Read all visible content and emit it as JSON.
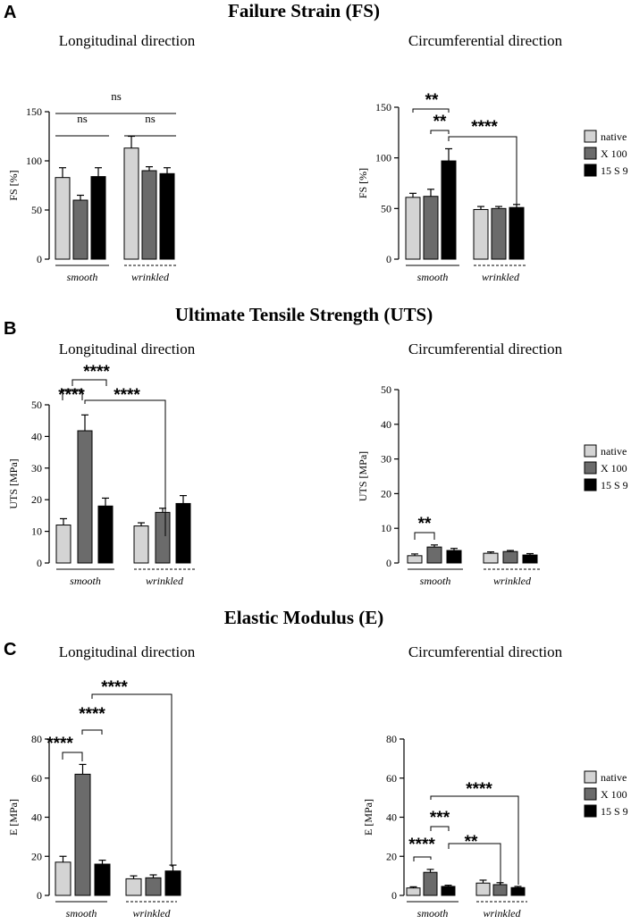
{
  "sections": [
    {
      "letter": "A",
      "title": "Failure Strain (FS)"
    },
    {
      "letter": "B",
      "title": "Ultimate Tensile Strength (UTS)"
    },
    {
      "letter": "C",
      "title": "Elastic Modulus (E)"
    }
  ],
  "legend_entries": [
    "native",
    "X 100",
    "15 S 9"
  ],
  "colors": {
    "native": "#d4d4d4",
    "X 100": "#6b6b6b",
    "15 S 9": "#000000"
  },
  "chart_data": [
    {
      "type": "bar",
      "title": "Longitudinal direction",
      "ylabel": "FS [%]",
      "ylim": [
        0,
        150
      ],
      "yticks": [
        0,
        50,
        100,
        150
      ],
      "groups": [
        "smooth",
        "wrinkled"
      ],
      "series": [
        {
          "name": "native",
          "values": [
            83,
            113
          ],
          "errors": [
            10,
            12
          ]
        },
        {
          "name": "X 100",
          "values": [
            60,
            90
          ],
          "errors": [
            5,
            4
          ]
        },
        {
          "name": "15 S 9",
          "values": [
            84,
            87
          ],
          "errors": [
            9,
            6
          ]
        }
      ],
      "annotations": [
        {
          "label": "ns",
          "from": "smooth",
          "to": "wrinkled",
          "level": 155
        },
        {
          "label": "ns",
          "from": "smooth.native",
          "to": "smooth.15 S 9",
          "level": 130
        },
        {
          "label": "ns",
          "from": "wrinkled.native",
          "to": "wrinkled.15 S 9",
          "level": 130
        }
      ]
    },
    {
      "type": "bar",
      "title": "Circumferential direction",
      "ylabel": "FS [%]",
      "ylim": [
        0,
        150
      ],
      "yticks": [
        0,
        50,
        100,
        150
      ],
      "groups": [
        "smooth",
        "wrinkled"
      ],
      "legend": "right",
      "series": [
        {
          "name": "native",
          "values": [
            61,
            49
          ],
          "errors": [
            4,
            3
          ]
        },
        {
          "name": "X 100",
          "values": [
            62,
            50
          ],
          "errors": [
            7,
            2
          ]
        },
        {
          "name": "15 S 9",
          "values": [
            97,
            51
          ],
          "errors": [
            12,
            3
          ]
        }
      ],
      "annotations": [
        {
          "label": "**",
          "from": "smooth.native",
          "to": "smooth.15 S 9"
        },
        {
          "label": "**",
          "from": "smooth.X 100",
          "to": "smooth.15 S 9"
        },
        {
          "label": "****",
          "from": "smooth.15 S 9",
          "to": "wrinkled.15 S 9"
        }
      ]
    },
    {
      "type": "bar",
      "title": "Longitudinal direction",
      "ylabel": "UTS [MPa]",
      "ylim": [
        0,
        50
      ],
      "yticks": [
        0,
        10,
        20,
        30,
        40,
        50
      ],
      "groups": [
        "smooth",
        "wrinkled"
      ],
      "series": [
        {
          "name": "native",
          "values": [
            12,
            11.7
          ],
          "errors": [
            2,
            1
          ]
        },
        {
          "name": "X 100",
          "values": [
            41.8,
            16
          ],
          "errors": [
            5,
            1.3
          ]
        },
        {
          "name": "15 S 9",
          "values": [
            18,
            18.8
          ],
          "errors": [
            2.5,
            2.5
          ]
        }
      ],
      "annotations": [
        {
          "label": "****",
          "from": "smooth.native",
          "to": "smooth.X 100"
        },
        {
          "label": "****",
          "from": "smooth.X 100",
          "to": "smooth.15 S 9"
        },
        {
          "label": "****",
          "from": "smooth.X 100",
          "to": "wrinkled.X 100"
        }
      ]
    },
    {
      "type": "bar",
      "title": "Circumferential direction",
      "ylabel": "UTS [MPa]",
      "ylim": [
        0,
        50
      ],
      "yticks": [
        0,
        10,
        20,
        30,
        40,
        50
      ],
      "groups": [
        "smooth",
        "wrinkled"
      ],
      "legend": "right",
      "series": [
        {
          "name": "native",
          "values": [
            2.1,
            2.8
          ],
          "errors": [
            0.5,
            0.4
          ]
        },
        {
          "name": "X 100",
          "values": [
            4.6,
            3.3
          ],
          "errors": [
            0.6,
            0.3
          ]
        },
        {
          "name": "15 S 9",
          "values": [
            3.6,
            2.3
          ],
          "errors": [
            0.6,
            0.4
          ]
        }
      ],
      "annotations": [
        {
          "label": "**",
          "from": "smooth.native",
          "to": "smooth.X 100"
        }
      ]
    },
    {
      "type": "bar",
      "title": "Longitudinal direction",
      "ylabel": "E [MPa]",
      "ylim": [
        0,
        80
      ],
      "yticks": [
        0,
        20,
        40,
        60,
        80
      ],
      "groups": [
        "smooth",
        "wrinkled"
      ],
      "series": [
        {
          "name": "native",
          "values": [
            17,
            8.5
          ],
          "errors": [
            3,
            1.5
          ]
        },
        {
          "name": "X 100",
          "values": [
            62,
            9
          ],
          "errors": [
            5,
            1.5
          ]
        },
        {
          "name": "15 S 9",
          "values": [
            16,
            12.5
          ],
          "errors": [
            2,
            3
          ]
        }
      ],
      "annotations": [
        {
          "label": "****",
          "from": "smooth.native",
          "to": "smooth.X 100"
        },
        {
          "label": "****",
          "from": "smooth.X 100",
          "to": "smooth.15 S 9"
        },
        {
          "label": "****",
          "from": "smooth.15 S 9",
          "to": "wrinkled.15 S 9"
        }
      ]
    },
    {
      "type": "bar",
      "title": "Circumferential direction",
      "ylabel": "E [MPa]",
      "ylim": [
        0,
        80
      ],
      "yticks": [
        0,
        20,
        40,
        60,
        80
      ],
      "groups": [
        "smooth",
        "wrinkled"
      ],
      "legend": "right",
      "series": [
        {
          "name": "native",
          "values": [
            3.8,
            6.3
          ],
          "errors": [
            0.6,
            1.5
          ]
        },
        {
          "name": "X 100",
          "values": [
            11.8,
            5.5
          ],
          "errors": [
            1.5,
            1
          ]
        },
        {
          "name": "15 S 9",
          "values": [
            4.6,
            4
          ],
          "errors": [
            0.6,
            0.6
          ]
        }
      ],
      "annotations": [
        {
          "label": "****",
          "from": "smooth.native",
          "to": "smooth.X 100"
        },
        {
          "label": "***",
          "from": "smooth.X 100",
          "to": "smooth.15 S 9"
        },
        {
          "label": "**",
          "from": "smooth.15 S 9",
          "to": "wrinkled.native"
        },
        {
          "label": "****",
          "from": "smooth.X 100",
          "to": "wrinkled.15 S 9"
        }
      ]
    }
  ]
}
